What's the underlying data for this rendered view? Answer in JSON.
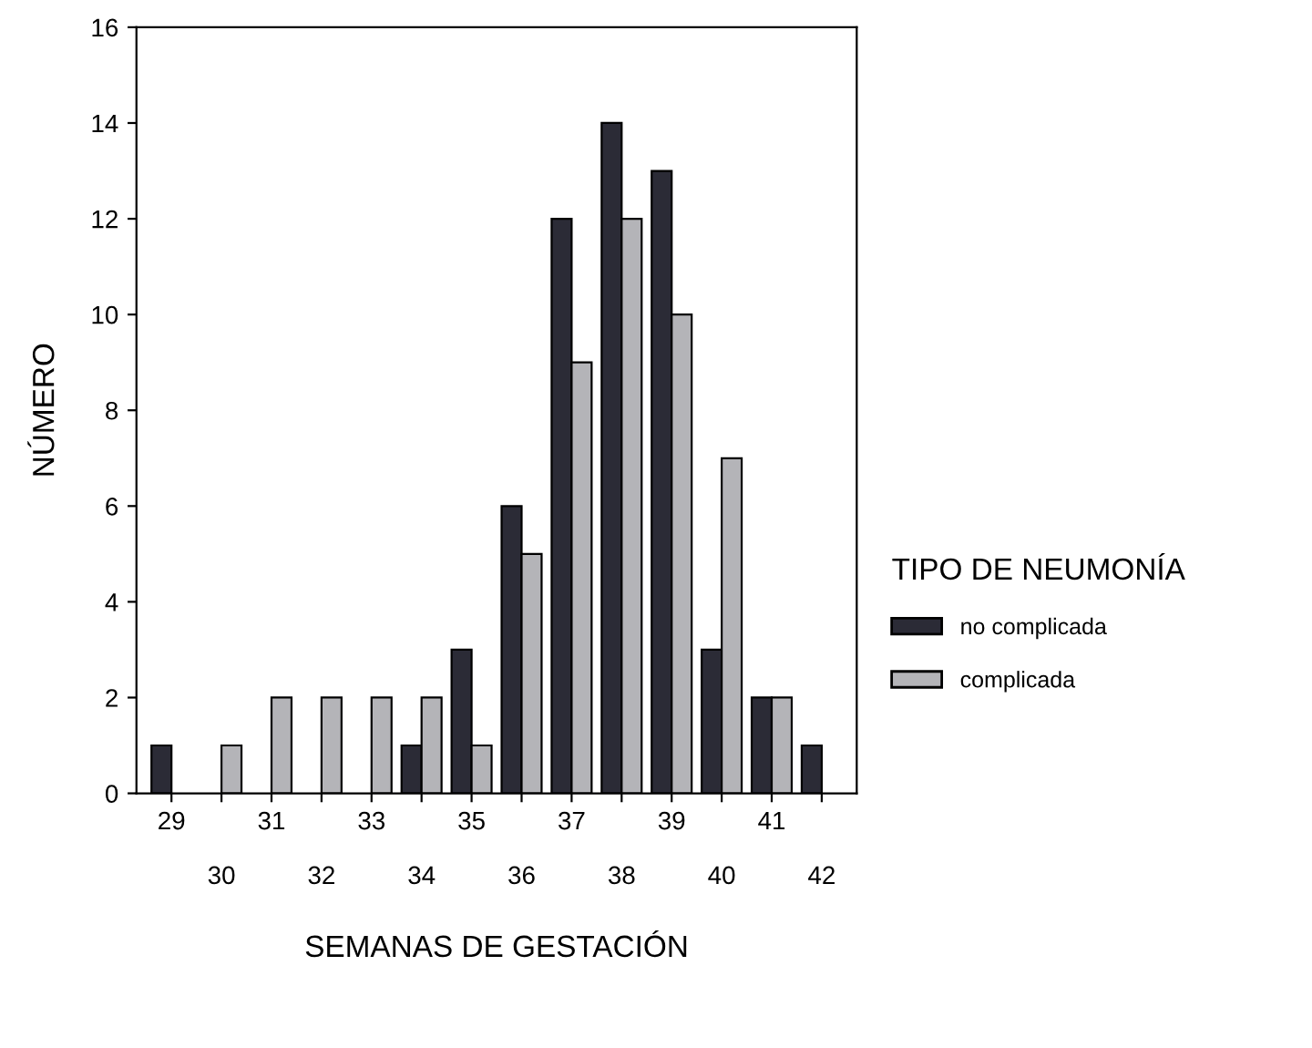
{
  "chart_data": {
    "type": "bar",
    "xlabel": "SEMANAS DE GESTACIÓN",
    "ylabel": "NÚMERO",
    "legend_title": "TIPO DE NEUMONÍA",
    "categories": [
      "29",
      "30",
      "31",
      "32",
      "33",
      "34",
      "35",
      "36",
      "37",
      "38",
      "39",
      "40",
      "41",
      "42"
    ],
    "series": [
      {
        "name": "no complicada",
        "color": "#2b2b36",
        "values": [
          1,
          0,
          0,
          0,
          0,
          1,
          3,
          6,
          12,
          14,
          13,
          3,
          2,
          1
        ]
      },
      {
        "name": "complicada",
        "color": "#b4b4b8",
        "values": [
          0,
          1,
          2,
          2,
          2,
          2,
          1,
          5,
          9,
          12,
          10,
          7,
          2,
          0
        ]
      }
    ],
    "ylim": [
      0,
      16
    ],
    "yticks": [
      0,
      2,
      4,
      6,
      8,
      10,
      12,
      14,
      16
    ],
    "grid": false,
    "legend": "right"
  }
}
